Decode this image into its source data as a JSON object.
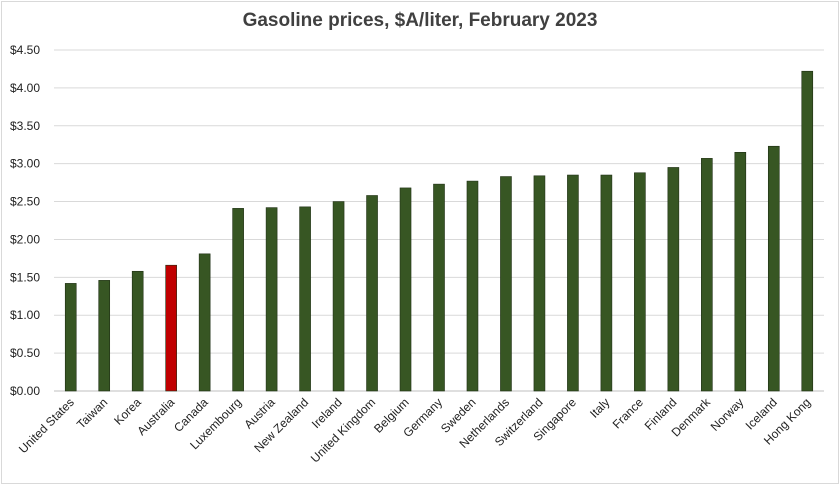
{
  "chart_data": {
    "type": "bar",
    "title": "Gasoline prices, $A/liter, February 2023",
    "xlabel": "",
    "ylabel": "",
    "ylim": [
      0,
      4.5
    ],
    "ytick_values": [
      0,
      0.5,
      1.0,
      1.5,
      2.0,
      2.5,
      3.0,
      3.5,
      4.0,
      4.5
    ],
    "ytick_labels": [
      "$0.00",
      "$0.50",
      "$1.00",
      "$1.50",
      "$2.00",
      "$2.50",
      "$3.00",
      "$3.50",
      "$4.00",
      "$4.50"
    ],
    "grid": true,
    "legend": "none",
    "categories": [
      "United States",
      "Taiwan",
      "Korea",
      "Australia",
      "Canada",
      "Luxembourg",
      "Austria",
      "New Zealand",
      "Ireland",
      "United Kingdom",
      "Belgium",
      "Germany",
      "Sweden",
      "Netherlands",
      "Switzerland",
      "Singapore",
      "Italy",
      "France",
      "Finland",
      "Denmark",
      "Norway",
      "Iceland",
      "Hong Kong"
    ],
    "values": [
      1.42,
      1.46,
      1.58,
      1.66,
      1.81,
      2.41,
      2.42,
      2.43,
      2.5,
      2.58,
      2.68,
      2.73,
      2.77,
      2.83,
      2.84,
      2.85,
      2.85,
      2.88,
      2.95,
      3.07,
      3.15,
      3.23,
      4.22
    ],
    "colors": {
      "default": "#375623",
      "highlight": "#c00000",
      "highlight_category": "Australia",
      "grid": "#d9d9d9"
    }
  }
}
